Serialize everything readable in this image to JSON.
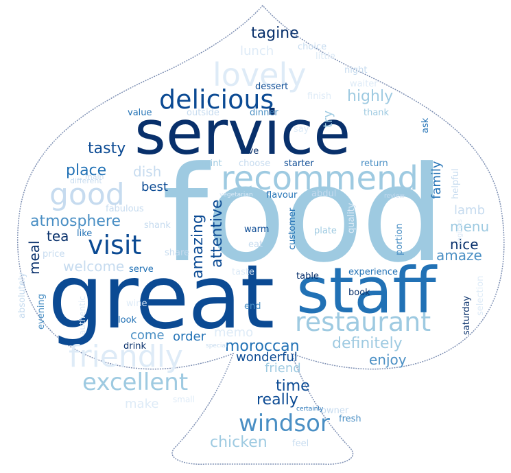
{
  "palette": {
    "navy": "#08306b",
    "dark": "#0b4a93",
    "mid": "#2171b5",
    "steel": "#4a8fc4",
    "light": "#9ecae1",
    "pale": "#c6dbef",
    "faint": "#deebf7",
    "outline": "#7d8fb3"
  },
  "words": [
    {
      "text": "food"
    },
    {
      "text": "great"
    },
    {
      "text": "staff"
    },
    {
      "text": "service"
    },
    {
      "text": "recommend"
    },
    {
      "text": "lovely"
    },
    {
      "text": "delicious"
    },
    {
      "text": "friendly"
    },
    {
      "text": "restaurant"
    },
    {
      "text": "good"
    },
    {
      "text": "excellent"
    },
    {
      "text": "windsor"
    },
    {
      "text": "visit"
    },
    {
      "text": "tagine"
    },
    {
      "text": "tasty"
    },
    {
      "text": "atmosphere"
    },
    {
      "text": "highly"
    },
    {
      "text": "place"
    },
    {
      "text": "dish"
    },
    {
      "text": "best"
    },
    {
      "text": "meal"
    },
    {
      "text": "tea"
    },
    {
      "text": "welcome"
    },
    {
      "text": "amazing"
    },
    {
      "text": "attentive"
    },
    {
      "text": "moroccan"
    },
    {
      "text": "definitely"
    },
    {
      "text": "enjoy"
    },
    {
      "text": "wonderful"
    },
    {
      "text": "come"
    },
    {
      "text": "order"
    },
    {
      "text": "time"
    },
    {
      "text": "really"
    },
    {
      "text": "chicken"
    },
    {
      "text": "friend"
    },
    {
      "text": "family"
    },
    {
      "text": "nice"
    },
    {
      "text": "amaze"
    },
    {
      "text": "menu"
    },
    {
      "text": "lamb"
    },
    {
      "text": "lunch"
    },
    {
      "text": "choice"
    },
    {
      "text": "little"
    },
    {
      "text": "night"
    },
    {
      "text": "waiter"
    },
    {
      "text": "dessert"
    },
    {
      "text": "finish"
    },
    {
      "text": "try"
    },
    {
      "text": "value"
    },
    {
      "text": "outside"
    },
    {
      "text": "dinner"
    },
    {
      "text": "thank"
    },
    {
      "text": "say"
    },
    {
      "text": "ask"
    },
    {
      "text": "love"
    },
    {
      "text": "mint"
    },
    {
      "text": "choose"
    },
    {
      "text": "starter"
    },
    {
      "text": "return"
    },
    {
      "text": "main"
    },
    {
      "text": "different"
    },
    {
      "text": "vegetarian"
    },
    {
      "text": "flavour"
    },
    {
      "text": "abdul"
    },
    {
      "text": "review"
    },
    {
      "text": "helpful"
    },
    {
      "text": "fabulous"
    },
    {
      "text": "shank"
    },
    {
      "text": "like"
    },
    {
      "text": "warm"
    },
    {
      "text": "eat"
    },
    {
      "text": "customer"
    },
    {
      "text": "plate"
    },
    {
      "text": "portion"
    },
    {
      "text": "tagines"
    },
    {
      "text": "price"
    },
    {
      "text": "share"
    },
    {
      "text": "serve"
    },
    {
      "text": "taste"
    },
    {
      "text": "table"
    },
    {
      "text": "experience"
    },
    {
      "text": "absolutely"
    },
    {
      "text": "evening"
    },
    {
      "text": "authentic"
    },
    {
      "text": "wine"
    },
    {
      "text": "end"
    },
    {
      "text": "book"
    },
    {
      "text": "saturday"
    },
    {
      "text": "selection"
    },
    {
      "text": "look"
    },
    {
      "text": "drink"
    },
    {
      "text": "special"
    },
    {
      "text": "make"
    },
    {
      "text": "small"
    },
    {
      "text": "owner"
    },
    {
      "text": "fresh"
    },
    {
      "text": "certainly"
    },
    {
      "text": "feel"
    },
    {
      "text": "quality"
    },
    {
      "text": "memo"
    }
  ]
}
